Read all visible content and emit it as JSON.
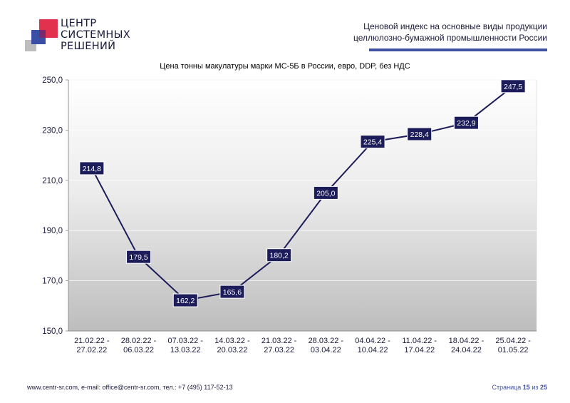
{
  "header": {
    "logo_lines": [
      "ЦЕНТР",
      "СИСТЕМНЫХ",
      "РЕШЕНИЙ"
    ],
    "title_lines": [
      "Ценовой индекс на основные виды продукции",
      "целлюлозно-бумажной промышленности России"
    ]
  },
  "colors": {
    "accent": "#3f51a0",
    "logo_red": "#e2304f",
    "logo_blue": "#3a4fa3",
    "logo_gray": "#bdbdbd",
    "line": "#1c1c5a",
    "label_bg": "#1c1c5a"
  },
  "chart_data": {
    "type": "line",
    "title": "Цена тонны макулатуры марки МС-5Б в России, евро, DDP, без НДС",
    "categories": [
      [
        "21.02.22 -",
        "27.02.22"
      ],
      [
        "28.02.22 -",
        "06.03.22"
      ],
      [
        "07.03.22 -",
        "13.03.22"
      ],
      [
        "14.03.22 -",
        "20.03.22"
      ],
      [
        "21.03.22 -",
        "27.03.22"
      ],
      [
        "28.03.22 -",
        "03.04.22"
      ],
      [
        "04.04.22 -",
        "10.04.22"
      ],
      [
        "11.04.22 -",
        "17.04.22"
      ],
      [
        "18.04.22 -",
        "24.04.22"
      ],
      [
        "25.04.22 -",
        "01.05.22"
      ]
    ],
    "values": [
      214.8,
      179.5,
      162.2,
      165.6,
      180.2,
      205.0,
      225.4,
      228.4,
      232.9,
      247.5
    ],
    "value_labels": [
      "214,8",
      "179,5",
      "162,2",
      "165,6",
      "180,2",
      "205,0",
      "225,4",
      "228,4",
      "232,9",
      "247,5"
    ],
    "ylim": [
      150,
      250
    ],
    "yticks": [
      150,
      170,
      190,
      210,
      230,
      250
    ],
    "ytick_labels": [
      "150,0",
      "170,0",
      "190,0",
      "210,0",
      "230,0",
      "250,0"
    ],
    "xlabel": "",
    "ylabel": "",
    "grid": true
  },
  "footer": {
    "contacts": "www.centr-sr.com, e-mail: office@centr-sr.com, тел.: +7 (495) 117-52-13",
    "page_word": "Страница",
    "page_num": "15",
    "of_word": "из",
    "page_total": "25"
  }
}
